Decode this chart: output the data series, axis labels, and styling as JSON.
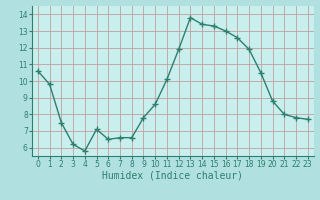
{
  "x": [
    0,
    1,
    2,
    3,
    4,
    5,
    6,
    7,
    8,
    9,
    10,
    11,
    12,
    13,
    14,
    15,
    16,
    17,
    18,
    19,
    20,
    21,
    22,
    23
  ],
  "y": [
    10.6,
    9.8,
    7.5,
    6.2,
    5.8,
    7.1,
    6.5,
    6.6,
    6.6,
    7.8,
    8.6,
    10.1,
    11.9,
    13.8,
    13.4,
    13.3,
    13.0,
    12.6,
    11.9,
    10.5,
    8.8,
    8.0,
    7.8,
    7.7
  ],
  "xlabel": "Humidex (Indice chaleur)",
  "line_color": "#2e7f6e",
  "marker": "+",
  "marker_size": 4,
  "line_width": 1.0,
  "bg_color": "#b0e0e0",
  "plot_bg_color": "#c8eeee",
  "grid_color_h": "#c0a0a0",
  "grid_color_v": "#c0a0a0",
  "xlim": [
    -0.5,
    23.5
  ],
  "ylim": [
    5.5,
    14.5
  ],
  "yticks": [
    6,
    7,
    8,
    9,
    10,
    11,
    12,
    13,
    14
  ],
  "xticks": [
    0,
    1,
    2,
    3,
    4,
    5,
    6,
    7,
    8,
    9,
    10,
    11,
    12,
    13,
    14,
    15,
    16,
    17,
    18,
    19,
    20,
    21,
    22,
    23
  ],
  "tick_label_fontsize": 5.5,
  "xlabel_fontsize": 7.0,
  "tick_color": "#2e7f6e"
}
